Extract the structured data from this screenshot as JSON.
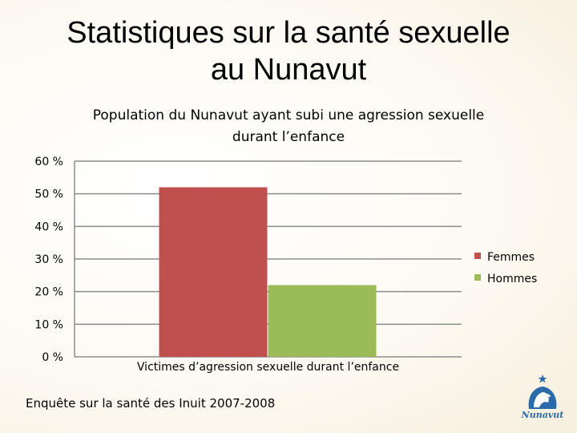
{
  "slide": {
    "title_line1": "Statistiques sur la santé sexuelle",
    "title_line2": "au Nunavut",
    "source": "Enquête sur la santé des Inuit 2007-2008",
    "logo_text": "Nunavut"
  },
  "colors": {
    "femmes": "#c0504d",
    "hommes": "#9bbb59"
  },
  "chart_data": {
    "type": "bar",
    "title_lines": [
      "Population du Nunavut ayant subi une agression sexuelle",
      "durant l’enfance"
    ],
    "categories": [
      "Victimes d’agression sexuelle durant l’enfance"
    ],
    "series": [
      {
        "name": "Femmes",
        "values": [
          52
        ]
      },
      {
        "name": "Hommes",
        "values": [
          22
        ]
      }
    ],
    "y_ticks": [
      "0 %",
      "10 %",
      "20 %",
      "30 %",
      "40 %",
      "50 %",
      "60 %"
    ],
    "ylim": [
      0,
      60
    ],
    "grid": true,
    "legend_position": "right"
  }
}
